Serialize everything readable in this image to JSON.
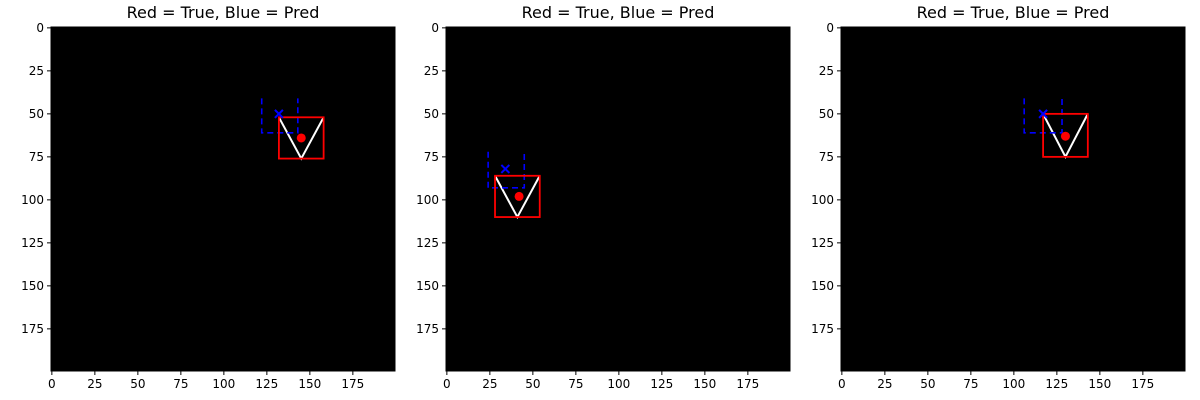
{
  "chart_data": [
    {
      "type": "image",
      "title": "Red = True, Blue = Pred",
      "xlim": [
        0,
        199
      ],
      "ylim": [
        199,
        0
      ],
      "xticks": [
        0,
        25,
        50,
        75,
        100,
        125,
        150,
        175
      ],
      "yticks": [
        0,
        25,
        50,
        75,
        100,
        125,
        150,
        175
      ],
      "background": "#000000",
      "shape": {
        "type": "V",
        "left": [
          132,
          52
        ],
        "bottom": [
          145,
          76
        ],
        "right": [
          158,
          52
        ]
      },
      "true_box": {
        "x0": 132,
        "y0": 52,
        "x1": 158,
        "y1": 76
      },
      "true_center": [
        145,
        64
      ],
      "pred_box": {
        "x0": 122,
        "y0": 41,
        "x1": 143,
        "y1": 61
      },
      "pred_center": [
        132,
        50
      ]
    },
    {
      "type": "image",
      "title": "Red = True, Blue = Pred",
      "xlim": [
        0,
        199
      ],
      "ylim": [
        199,
        0
      ],
      "xticks": [
        0,
        25,
        50,
        75,
        100,
        125,
        150,
        175
      ],
      "yticks": [
        0,
        25,
        50,
        75,
        100,
        125,
        150,
        175
      ],
      "background": "#000000",
      "shape": {
        "type": "V",
        "left": [
          28,
          86
        ],
        "bottom": [
          41,
          110
        ],
        "right": [
          54,
          86
        ]
      },
      "true_box": {
        "x0": 28,
        "y0": 86,
        "x1": 54,
        "y1": 110
      },
      "true_center": [
        42,
        98
      ],
      "pred_box": {
        "x0": 24,
        "y0": 72,
        "x1": 45,
        "y1": 93
      },
      "pred_center": [
        34,
        82
      ]
    },
    {
      "type": "image",
      "title": "Red = True, Blue = Pred",
      "xlim": [
        0,
        199
      ],
      "ylim": [
        199,
        0
      ],
      "xticks": [
        0,
        25,
        50,
        75,
        100,
        125,
        150,
        175
      ],
      "yticks": [
        0,
        25,
        50,
        75,
        100,
        125,
        150,
        175
      ],
      "background": "#000000",
      "shape": {
        "type": "V",
        "left": [
          117,
          50
        ],
        "bottom": [
          130,
          75
        ],
        "right": [
          143,
          50
        ]
      },
      "true_box": {
        "x0": 117,
        "y0": 50,
        "x1": 143,
        "y1": 75
      },
      "true_center": [
        130,
        63
      ],
      "pred_box": {
        "x0": 106,
        "y0": 41,
        "x1": 128,
        "y1": 61
      },
      "pred_center": [
        117,
        50
      ]
    }
  ],
  "colors": {
    "true": "#ff0000",
    "pred": "#0000ff",
    "shape": "#ffffff",
    "background": "#000000"
  }
}
